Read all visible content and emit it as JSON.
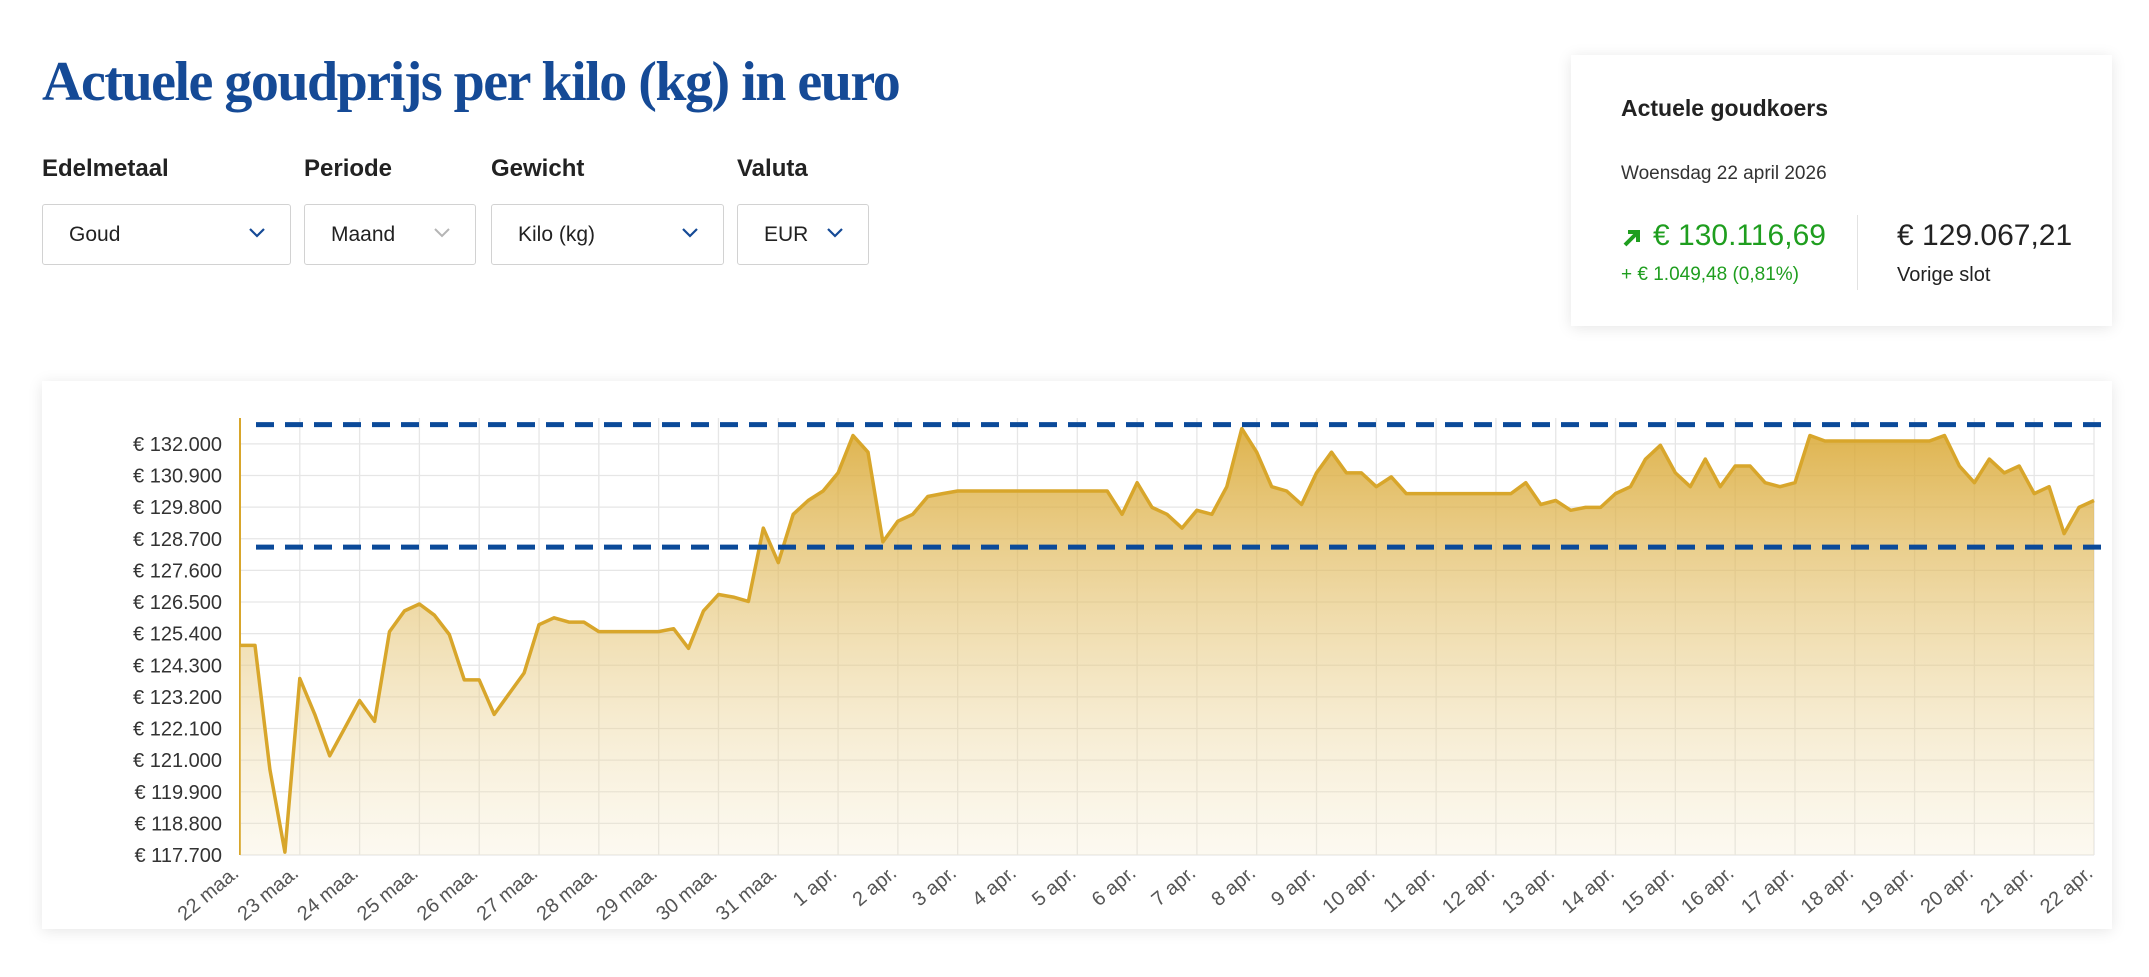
{
  "header": {
    "title": "Actuele goudprijs per kilo (kg) in euro"
  },
  "filters": [
    {
      "label": "Edelmetaal",
      "value": "Goud"
    },
    {
      "label": "Periode",
      "value": "Maand"
    },
    {
      "label": "Gewicht",
      "value": "Kilo (kg)"
    },
    {
      "label": "Valuta",
      "value": "EUR"
    }
  ],
  "quote_card": {
    "title": "Actuele goudkoers",
    "date": "Woensdag 22 april 2026",
    "current": "€ 130.116,69",
    "change": "+ € 1.049,48 (0,81%)",
    "previous": "€ 129.067,21",
    "previous_label": "Vorige slot"
  },
  "chart_data": {
    "type": "area",
    "categories": [
      "22 maa.",
      null,
      null,
      null,
      "23 maa.",
      null,
      null,
      null,
      "24 maa.",
      null,
      null,
      null,
      "25 maa.",
      null,
      null,
      null,
      "26 maa.",
      null,
      null,
      null,
      "27 maa.",
      null,
      null,
      null,
      "28 maa.",
      null,
      null,
      null,
      "29 maa.",
      null,
      null,
      null,
      "30 maa.",
      null,
      null,
      null,
      "31 maa.",
      null,
      null,
      null,
      "1 apr.",
      null,
      null,
      null,
      "2 apr.",
      null,
      null,
      null,
      "3 apr.",
      null,
      null,
      null,
      "4 apr.",
      null,
      null,
      null,
      "5 apr.",
      null,
      null,
      null,
      "6 apr.",
      null,
      null,
      null,
      "7 apr.",
      null,
      null,
      null,
      "8 apr.",
      null,
      null,
      null,
      "9 apr.",
      null,
      null,
      null,
      "10 apr.",
      null,
      null,
      null,
      "11 apr.",
      null,
      null,
      null,
      "12 apr.",
      null,
      null,
      null,
      "13 apr.",
      null,
      null,
      null,
      "14 apr.",
      null,
      null,
      null,
      "15 apr.",
      null,
      null,
      null,
      "16 apr.",
      null,
      null,
      null,
      "17 apr.",
      null,
      null,
      null,
      "18 apr.",
      null,
      null,
      null,
      "19 apr.",
      null,
      null,
      null,
      "20 apr.",
      null,
      null,
      null,
      "21 apr.",
      null,
      null,
      null,
      "22 apr."
    ],
    "series": [
      {
        "color": "#d8a62b",
        "values": [
          124990,
          124990,
          120670,
          117800,
          123840,
          122590,
          121150,
          122110,
          123070,
          122350,
          125470,
          126190,
          126430,
          126040,
          125370,
          123790,
          123790,
          122590,
          123310,
          124030,
          125710,
          125950,
          125800,
          125800,
          125470,
          125470,
          125470,
          125470,
          125470,
          125570,
          124890,
          126190,
          126760,
          126670,
          126520,
          129070,
          127870,
          129550,
          130030,
          130360,
          130990,
          132290,
          131710,
          128590,
          129310,
          129550,
          130170,
          130270,
          130360,
          130360,
          130360,
          130360,
          130360,
          130360,
          130360,
          130360,
          130360,
          130360,
          130360,
          129550,
          130650,
          129790,
          129550,
          129070,
          129690,
          129550,
          130510,
          132530,
          131710,
          130510,
          130360,
          129890,
          130990,
          131710,
          130990,
          130990,
          130510,
          130850,
          130270,
          130270,
          130270,
          130270,
          130270,
          130270,
          130270,
          130270,
          130650,
          129890,
          130030,
          129690,
          129790,
          129790,
          130270,
          130510,
          131470,
          131950,
          130990,
          130510,
          131470,
          130510,
          131230,
          131230,
          130650,
          130510,
          130650,
          132290,
          132100,
          132100,
          132100,
          132100,
          132100,
          132100,
          132100,
          132100,
          132290,
          131230,
          130650,
          131470,
          130990,
          131230,
          130270,
          130510,
          128880,
          129790,
          130030
        ]
      }
    ],
    "reference_lines": {
      "color": "#0b4a99",
      "values": [
        132670,
        128410
      ]
    },
    "ylim": [
      117700,
      132900
    ],
    "yticks": [
      {
        "value": 117700,
        "label": "€ 117.700"
      },
      {
        "value": 118800,
        "label": "€ 118.800"
      },
      {
        "value": 119900,
        "label": "€ 119.900"
      },
      {
        "value": 121000,
        "label": "€ 121.000"
      },
      {
        "value": 122100,
        "label": "€ 122.100"
      },
      {
        "value": 123200,
        "label": "€ 123.200"
      },
      {
        "value": 124300,
        "label": "€ 124.300"
      },
      {
        "value": 125400,
        "label": "€ 125.400"
      },
      {
        "value": 126500,
        "label": "€ 126.500"
      },
      {
        "value": 127600,
        "label": "€ 127.600"
      },
      {
        "value": 128700,
        "label": "€ 128.700"
      },
      {
        "value": 129800,
        "label": "€ 129.800"
      },
      {
        "value": 130900,
        "label": "€ 130.900"
      },
      {
        "value": 132000,
        "label": "€ 132.000"
      }
    ],
    "grid": true
  }
}
